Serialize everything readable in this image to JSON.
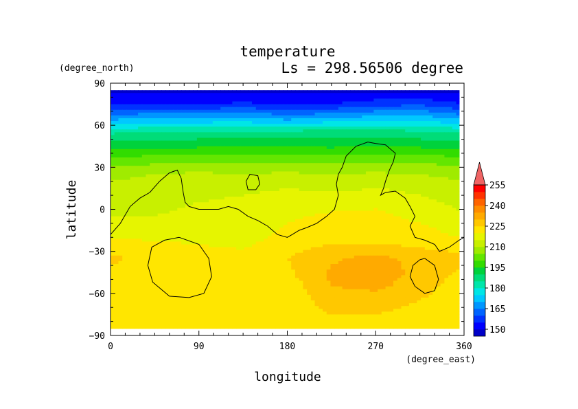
{
  "chart_data": {
    "type": "heatmap",
    "title": "temperature",
    "subtitle": "Ls = 298.56506 degree",
    "xlabel": "longitude",
    "ylabel": "latitude",
    "x_units": "(degree_east)",
    "y_units": "(degree_north)",
    "xlim": [
      0,
      360
    ],
    "ylim": [
      -90,
      90
    ],
    "x_ticks": [
      "0",
      "90",
      "180",
      "270",
      "360"
    ],
    "y_ticks": [
      "90",
      "60",
      "30",
      "0",
      "−30",
      "−60",
      "−90"
    ],
    "x_tick_values": [
      0,
      90,
      180,
      270,
      360
    ],
    "y_tick_values": [
      90,
      60,
      30,
      0,
      -30,
      -60,
      -90
    ],
    "colorbar": {
      "labels": [
        "255",
        "240",
        "225",
        "210",
        "195",
        "180",
        "165",
        "150"
      ],
      "label_values": [
        255,
        240,
        225,
        210,
        195,
        180,
        165,
        150
      ],
      "levels": [
        145,
        150,
        155,
        160,
        165,
        170,
        175,
        180,
        185,
        190,
        195,
        200,
        205,
        210,
        215,
        220,
        225,
        230,
        235,
        240,
        245,
        250,
        255,
        260
      ],
      "colors": [
        "#0000c8",
        "#0000ff",
        "#0032ff",
        "#0064ff",
        "#0096ff",
        "#00c8ff",
        "#00e6e6",
        "#00e6aa",
        "#00dc78",
        "#00d23c",
        "#32dc00",
        "#64e600",
        "#a0eb00",
        "#c8f000",
        "#e6f500",
        "#ffe600",
        "#ffc800",
        "#ffaa00",
        "#ff8c00",
        "#ff6400",
        "#ff3200",
        "#ff0000",
        "#f06464"
      ],
      "extend": "max"
    },
    "z_lat_rows": [
      85,
      75,
      65,
      55,
      45,
      35,
      25,
      15,
      5,
      -5,
      -15,
      -25,
      -35,
      -45,
      -55,
      -65,
      -75,
      -85
    ],
    "z_lon_cols": [
      0,
      45,
      90,
      135,
      180,
      225,
      270,
      315,
      360
    ],
    "z_rows": [
      [
        148,
        148,
        148,
        148,
        148,
        148,
        148,
        148,
        148
      ],
      [
        155,
        155,
        155,
        156,
        155,
        155,
        158,
        159,
        155
      ],
      [
        168,
        170,
        170,
        171,
        168,
        170,
        172,
        173,
        168
      ],
      [
        184,
        185,
        186,
        186,
        186,
        188,
        187,
        186,
        184
      ],
      [
        193,
        194,
        194,
        195,
        195,
        194,
        195,
        194,
        193
      ],
      [
        202,
        203,
        204,
        204,
        204,
        203,
        203,
        204,
        202
      ],
      [
        208,
        210,
        211,
        210,
        211,
        210,
        211,
        210,
        208
      ],
      [
        212,
        213,
        213,
        214,
        215,
        214,
        215,
        214,
        212
      ],
      [
        214,
        214,
        215,
        216,
        217,
        218,
        218,
        216,
        214
      ],
      [
        215,
        215,
        216,
        217,
        219,
        221,
        222,
        218,
        215
      ],
      [
        217,
        216,
        216,
        216,
        221,
        223,
        224,
        222,
        217
      ],
      [
        223,
        221,
        220,
        219,
        223,
        225,
        225,
        224,
        223
      ],
      [
        226,
        223,
        222,
        222,
        225,
        229,
        232,
        228,
        226
      ],
      [
        224,
        222,
        221,
        221,
        224,
        231,
        232,
        229,
        224
      ],
      [
        221,
        221,
        220,
        220,
        222,
        230,
        231,
        228,
        221
      ],
      [
        220,
        220,
        220,
        220,
        221,
        228,
        228,
        225,
        220
      ],
      [
        221,
        221,
        221,
        221,
        222,
        225,
        225,
        223,
        221
      ],
      [
        222,
        222,
        222,
        222,
        222,
        223,
        223,
        222,
        222
      ]
    ],
    "topography_contours": [
      {
        "lon": [
          0,
          10,
          20,
          30,
          40,
          50,
          60,
          68,
          72,
          74,
          76,
          80,
          90,
          100,
          110,
          120,
          130,
          140,
          150,
          160,
          170,
          180,
          185,
          192,
          200,
          210,
          220,
          228,
          232,
          230,
          232,
          236,
          240,
          250,
          262,
          270,
          280,
          290,
          288,
          284,
          280,
          278,
          275,
          280,
          290,
          300,
          305,
          310,
          305,
          310,
          320,
          330,
          335,
          345,
          355,
          360
        ],
        "lat": [
          -18,
          -10,
          2,
          8,
          12,
          20,
          26,
          28,
          22,
          12,
          5,
          2,
          0,
          0,
          0,
          2,
          0,
          -5,
          -8,
          -12,
          -18,
          -20,
          -18,
          -15,
          -13,
          -10,
          -5,
          0,
          10,
          18,
          25,
          30,
          38,
          45,
          48,
          47,
          46,
          40,
          34,
          28,
          20,
          15,
          10,
          12,
          13,
          8,
          2,
          -5,
          -12,
          -20,
          -22,
          -25,
          -30,
          -27,
          -22,
          -20
        ]
      },
      {
        "lon": [
          138,
          142,
          150,
          152,
          148,
          140,
          138
        ],
        "lat": [
          20,
          25,
          24,
          18,
          14,
          14,
          20
        ]
      },
      {
        "lon": [
          70,
          90,
          100,
          103,
          95,
          80,
          60,
          43,
          38,
          42,
          55,
          70
        ],
        "lat": [
          -20,
          -25,
          -35,
          -48,
          -60,
          -63,
          -62,
          -52,
          -40,
          -27,
          -22,
          -20
        ]
      },
      {
        "lon": [
          320,
          330,
          334,
          330,
          320,
          310,
          305,
          308,
          315,
          320
        ],
        "lat": [
          -35,
          -40,
          -50,
          -58,
          -60,
          -55,
          -48,
          -40,
          -36,
          -35
        ]
      }
    ]
  }
}
